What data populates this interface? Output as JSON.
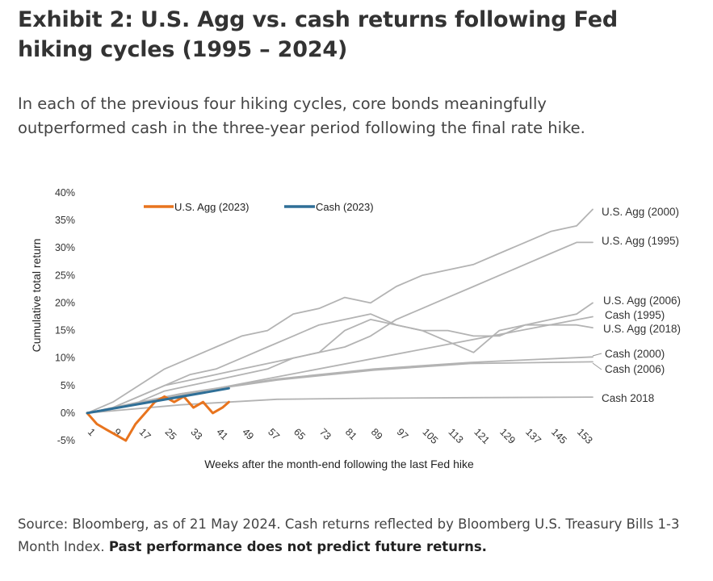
{
  "header": {
    "title_line1": "Exhibit 2: U.S. Agg vs. cash returns following Fed",
    "title_line2": "hiking cycles (1995 – 2024)",
    "subtitle_line1": "In each of the previous four hiking cycles, core bonds meaningfully",
    "subtitle_line2": "outperformed cash in the three-year period following the final rate hike."
  },
  "footer": {
    "source_text": "Source: Bloomberg, as of 21 May 2024. Cash returns reflected by Bloomberg U.S. Treasury Bills 1-3 Month Index.",
    "disclaimer": "Past performance does not predict future returns."
  },
  "colors": {
    "historical": "#b3b3b3",
    "agg_2023": "#e8741e",
    "cash_2023": "#2f6f97"
  },
  "chart_data": {
    "type": "line",
    "title": "",
    "xlabel": "Weeks after the month-end following the last Fed hike",
    "ylabel": "Cumulative total return",
    "xlim": [
      1,
      158
    ],
    "ylim": [
      -5,
      40
    ],
    "x_ticks": [
      "1",
      "9",
      "17",
      "25",
      "33",
      "41",
      "49",
      "57",
      "65",
      "73",
      "81",
      "89",
      "97",
      "105",
      "113",
      "121",
      "129",
      "137",
      "145",
      "153"
    ],
    "y_ticks": [
      "-5%",
      "0%",
      "5%",
      "10%",
      "15%",
      "20%",
      "25%",
      "30%",
      "35%",
      "40%"
    ],
    "legend": {
      "placement": "top-left",
      "entries": [
        "U.S. Agg (2023)",
        "Cash (2023)"
      ]
    },
    "series": [
      {
        "name": "U.S. Agg (2000)",
        "color": "#b3b3b3",
        "label": "U.S. Agg (2000)",
        "x": [
          1,
          9,
          17,
          25,
          33,
          41,
          49,
          57,
          65,
          73,
          81,
          89,
          97,
          105,
          113,
          121,
          129,
          137,
          145,
          153,
          158
        ],
        "y": [
          0,
          2,
          5,
          8,
          10,
          12,
          14,
          15,
          18,
          19,
          21,
          20,
          23,
          25,
          26,
          27,
          29,
          31,
          33,
          34,
          37
        ]
      },
      {
        "name": "U.S. Agg (1995)",
        "color": "#b3b3b3",
        "label": "U.S. Agg (1995)",
        "x": [
          1,
          9,
          17,
          25,
          33,
          41,
          49,
          57,
          65,
          73,
          81,
          89,
          97,
          105,
          113,
          121,
          129,
          137,
          145,
          153,
          158
        ],
        "y": [
          0,
          1,
          3,
          5,
          6,
          7,
          8,
          9,
          10,
          11,
          12,
          14,
          17,
          19,
          21,
          23,
          25,
          27,
          29,
          31,
          31
        ]
      },
      {
        "name": "U.S. Agg (2006)",
        "color": "#b3b3b3",
        "label": "U.S. Agg (2006)",
        "x": [
          1,
          9,
          17,
          25,
          33,
          41,
          49,
          57,
          65,
          73,
          81,
          89,
          97,
          105,
          113,
          121,
          129,
          137,
          145,
          153,
          158
        ],
        "y": [
          0,
          1,
          2,
          4,
          5,
          6,
          7,
          8,
          10,
          11,
          15,
          17,
          16,
          15,
          13,
          11,
          15,
          16,
          17,
          18,
          20
        ]
      },
      {
        "name": "U.S. Agg (2018)",
        "color": "#b3b3b3",
        "label": "U.S. Agg (2018)",
        "x": [
          1,
          9,
          17,
          25,
          33,
          41,
          49,
          57,
          65,
          73,
          81,
          89,
          97,
          105,
          113,
          121,
          129,
          137,
          145,
          153,
          158
        ],
        "y": [
          0,
          1,
          3,
          5,
          7,
          8,
          10,
          12,
          14,
          16,
          17,
          18,
          16,
          15,
          15,
          14,
          14,
          16,
          16,
          16,
          15.5
        ]
      },
      {
        "name": "Cash (1995)",
        "color": "#b3b3b3",
        "label": "Cash (1995)",
        "x": [
          1,
          158
        ],
        "y": [
          0,
          17.5
        ]
      },
      {
        "name": "Cash (2000)",
        "color": "#b3b3b3",
        "label": "Cash (2000)",
        "x": [
          1,
          30,
          60,
          90,
          120,
          158
        ],
        "y": [
          0,
          3.5,
          6.2,
          8,
          9.2,
          10.2
        ]
      },
      {
        "name": "Cash (2006)",
        "color": "#b3b3b3",
        "label": "Cash (2006)",
        "x": [
          1,
          30,
          60,
          90,
          120,
          158
        ],
        "y": [
          0,
          3.5,
          6,
          7.8,
          9,
          9.3
        ]
      },
      {
        "name": "Cash 2018",
        "color": "#b3b3b3",
        "label": "Cash 2018",
        "x": [
          1,
          30,
          60,
          90,
          120,
          158
        ],
        "y": [
          0,
          1.5,
          2.5,
          2.7,
          2.8,
          2.9
        ]
      },
      {
        "name": "U.S. Agg (2023)",
        "color": "#e8741e",
        "x": [
          1,
          4,
          7,
          10,
          13,
          16,
          19,
          22,
          25,
          28,
          31,
          34,
          37,
          40,
          43,
          45
        ],
        "y": [
          0,
          -2,
          -3,
          -4,
          -5,
          -2,
          0,
          2,
          3,
          2,
          3,
          1,
          2,
          0,
          1,
          2
        ]
      },
      {
        "name": "Cash (2023)",
        "color": "#2f6f97",
        "x": [
          1,
          45
        ],
        "y": [
          0,
          4.5
        ]
      }
    ]
  }
}
